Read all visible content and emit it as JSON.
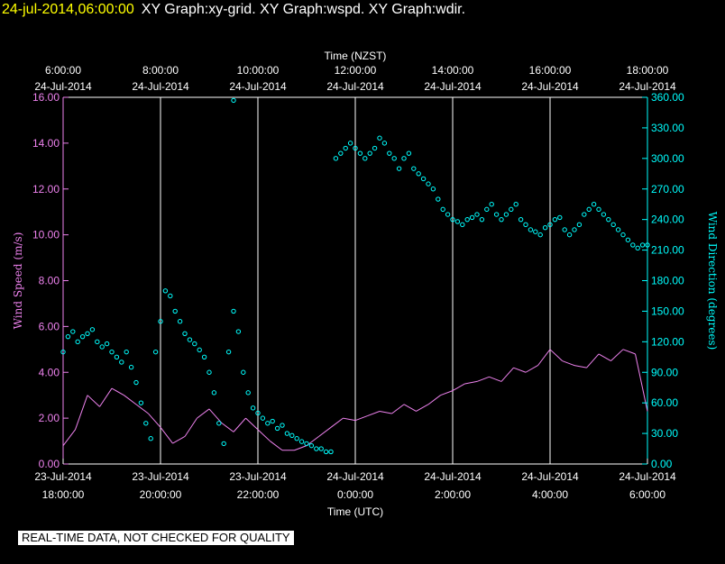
{
  "header": {
    "timestamp": "24-jul-2014,06:00:00",
    "titles": "XY Graph:xy-grid.  XY Graph:wspd.  XY Graph:wdir."
  },
  "notice": "REAL-TIME DATA, NOT CHECKED FOR QUALITY",
  "colors": {
    "speed": "#ee82ee",
    "direction": "#00ffff",
    "grid": "#ffffff",
    "text": "#ffffff",
    "background": "#000000"
  },
  "chart_data": {
    "type": "scatter",
    "top_axis": {
      "label": "Time (NZST)",
      "ticks": [
        {
          "t": 0,
          "line1": "6:00:00",
          "line2": "24-Jul-2014"
        },
        {
          "t": 2,
          "line1": "8:00:00",
          "line2": "24-Jul-2014"
        },
        {
          "t": 4,
          "line1": "10:00:00",
          "line2": "24-Jul-2014"
        },
        {
          "t": 6,
          "line1": "12:00:00",
          "line2": "24-Jul-2014"
        },
        {
          "t": 8,
          "line1": "14:00:00",
          "line2": "24-Jul-2014"
        },
        {
          "t": 10,
          "line1": "16:00:00",
          "line2": "24-Jul-2014"
        },
        {
          "t": 12,
          "line1": "18:00:00",
          "line2": "24-Jul-2014"
        }
      ]
    },
    "bottom_axis": {
      "label": "Time (UTC)",
      "ticks": [
        {
          "t": 0,
          "line1": "23-Jul-2014",
          "line2": "18:00:00"
        },
        {
          "t": 2,
          "line1": "23-Jul-2014",
          "line2": "20:00:00"
        },
        {
          "t": 4,
          "line1": "23-Jul-2014",
          "line2": "22:00:00"
        },
        {
          "t": 6,
          "line1": "24-Jul-2014",
          "line2": "0:00:00"
        },
        {
          "t": 8,
          "line1": "24-Jul-2014",
          "line2": "2:00:00"
        },
        {
          "t": 10,
          "line1": "24-Jul-2014",
          "line2": "4:00:00"
        },
        {
          "t": 12,
          "line1": "24-Jul-2014",
          "line2": "6:00:00"
        }
      ]
    },
    "x_range_hours": [
      0,
      12
    ],
    "left_axis": {
      "label": "Wind Speed (m/s)",
      "range": [
        0,
        16
      ],
      "ticks": [
        "0.00",
        "2.00",
        "4.00",
        "6.00",
        "8.00",
        "10.00",
        "12.00",
        "14.00",
        "16.00"
      ]
    },
    "right_axis": {
      "label": "Wind Direction (degrees)",
      "range": [
        0,
        360
      ],
      "ticks": [
        "0.00",
        "30.00",
        "60.00",
        "90.00",
        "120.00",
        "150.00",
        "180.00",
        "210.00",
        "240.00",
        "270.00",
        "300.00",
        "330.00",
        "360.00"
      ]
    },
    "grid": "vertical",
    "series": [
      {
        "key": "speed",
        "style": "line",
        "x": [
          0.0,
          0.25,
          0.5,
          0.75,
          1.0,
          1.25,
          1.5,
          1.75,
          2.0,
          2.25,
          2.5,
          2.75,
          3.0,
          3.25,
          3.5,
          3.75,
          4.0,
          4.25,
          4.5,
          4.75,
          5.0,
          5.25,
          5.5,
          5.75,
          6.0,
          6.25,
          6.5,
          6.75,
          7.0,
          7.25,
          7.5,
          7.75,
          8.0,
          8.25,
          8.5,
          8.75,
          9.0,
          9.25,
          9.5,
          9.75,
          10.0,
          10.25,
          10.5,
          10.75,
          11.0,
          11.25,
          11.5,
          11.75,
          12.0
        ],
        "y": [
          0.8,
          1.5,
          3.0,
          2.5,
          3.3,
          3.0,
          2.6,
          2.2,
          1.6,
          0.9,
          1.2,
          2.0,
          2.4,
          1.8,
          1.4,
          2.0,
          1.5,
          1.0,
          0.6,
          0.6,
          0.8,
          1.2,
          1.6,
          2.0,
          1.9,
          2.1,
          2.3,
          2.2,
          2.6,
          2.3,
          2.6,
          3.0,
          3.2,
          3.5,
          3.6,
          3.8,
          3.6,
          4.2,
          4.0,
          4.3,
          5.0,
          4.5,
          4.3,
          4.2,
          4.8,
          4.5,
          5.0,
          4.8,
          2.3
        ]
      },
      {
        "key": "direction",
        "style": "points",
        "x": [
          0.0,
          0.1,
          0.2,
          0.3,
          0.4,
          0.5,
          0.6,
          0.7,
          0.8,
          0.9,
          1.0,
          1.1,
          1.2,
          1.3,
          1.4,
          1.5,
          1.6,
          1.7,
          1.8,
          1.9,
          2.0,
          2.1,
          2.2,
          2.3,
          2.4,
          2.5,
          2.6,
          2.7,
          2.8,
          2.9,
          3.0,
          3.1,
          3.2,
          3.3,
          3.4,
          3.5,
          3.6,
          3.7,
          3.8,
          3.9,
          4.0,
          4.1,
          4.2,
          4.3,
          4.4,
          4.5,
          4.6,
          4.7,
          4.8,
          4.9,
          5.0,
          5.1,
          5.2,
          5.3,
          5.4,
          5.5,
          5.6,
          5.7,
          5.8,
          5.9,
          6.0,
          6.1,
          6.2,
          6.3,
          6.4,
          6.5,
          6.6,
          6.7,
          6.8,
          6.9,
          7.0,
          7.1,
          7.2,
          7.3,
          7.4,
          7.5,
          7.6,
          7.7,
          7.8,
          7.9,
          8.0,
          8.1,
          8.2,
          8.3,
          8.4,
          8.5,
          8.6,
          8.7,
          8.8,
          8.9,
          9.0,
          9.1,
          9.2,
          9.3,
          9.4,
          9.5,
          9.6,
          9.7,
          9.8,
          9.9,
          10.0,
          10.1,
          10.2,
          10.3,
          10.4,
          10.5,
          10.6,
          10.7,
          10.8,
          10.9,
          11.0,
          11.1,
          11.2,
          11.3,
          11.4,
          11.5,
          11.6,
          11.7,
          11.8,
          11.9,
          12.0
        ],
        "y": [
          110,
          125,
          130,
          120,
          125,
          128,
          132,
          120,
          115,
          118,
          110,
          105,
          100,
          110,
          95,
          80,
          60,
          40,
          25,
          110,
          140,
          170,
          165,
          150,
          140,
          128,
          122,
          118,
          112,
          105,
          90,
          70,
          40,
          20,
          110,
          150,
          130,
          90,
          70,
          55,
          50,
          45,
          40,
          42,
          35,
          38,
          30,
          28,
          25,
          22,
          20,
          18,
          15,
          15,
          12,
          12,
          300,
          305,
          310,
          315,
          310,
          305,
          300,
          305,
          310,
          320,
          315,
          305,
          300,
          290,
          300,
          305,
          290,
          285,
          280,
          275,
          270,
          260,
          250,
          245,
          240,
          238,
          235,
          240,
          242,
          245,
          240,
          250,
          255,
          245,
          240,
          245,
          250,
          255,
          240,
          235,
          230,
          228,
          225,
          232,
          235,
          240,
          242,
          230,
          225,
          230,
          235,
          245,
          250,
          255,
          250,
          245,
          240,
          235,
          230,
          225,
          220,
          215,
          212,
          215,
          215
        ]
      }
    ],
    "outliers": [
      {
        "t": 3.5,
        "dir": 357
      }
    ]
  }
}
